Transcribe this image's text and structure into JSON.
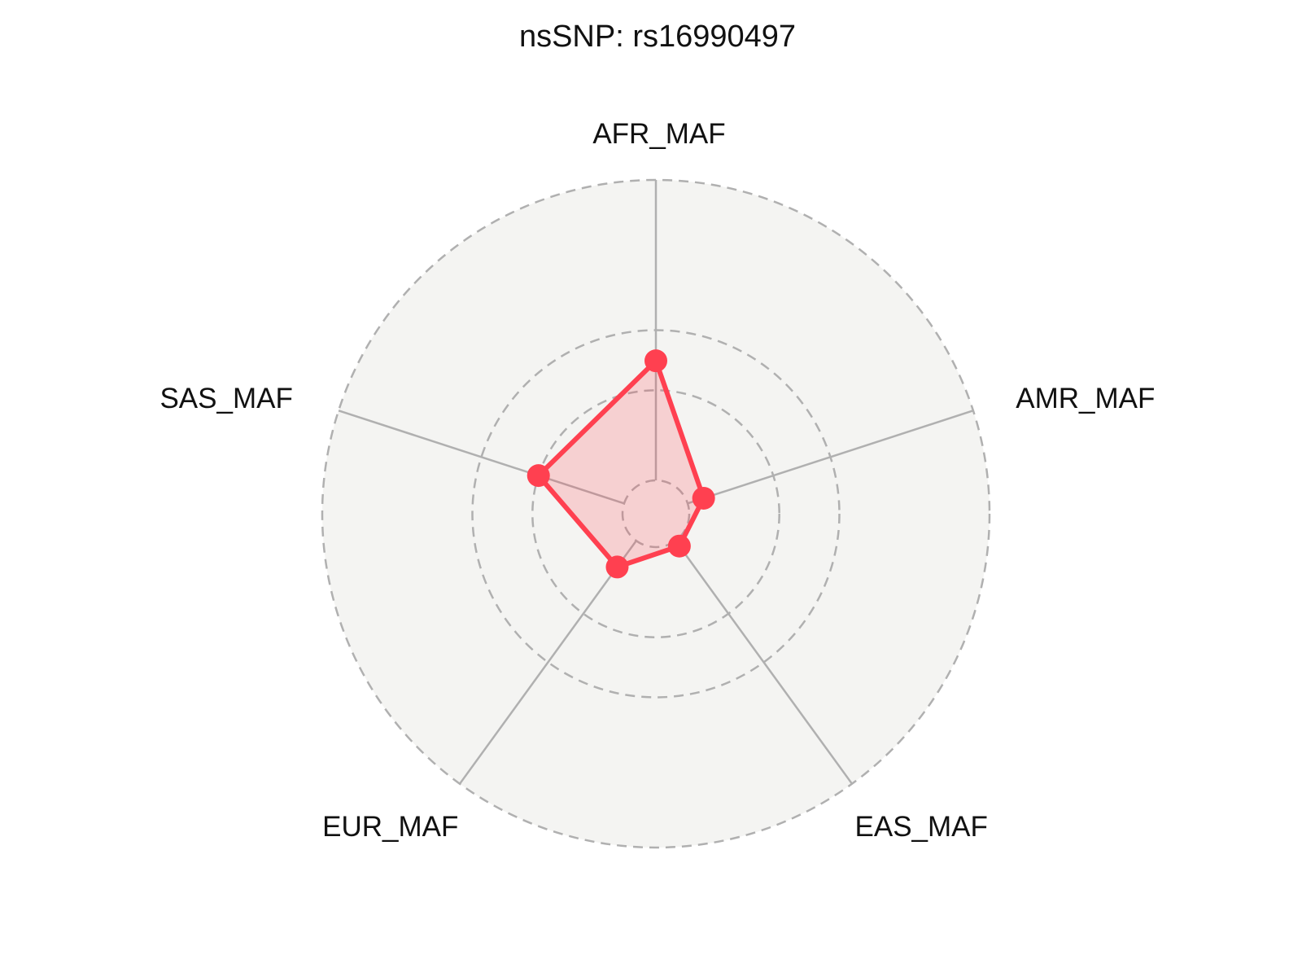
{
  "chart_data": {
    "type": "radar",
    "title": "nsSNP: rs16990497",
    "categories": [
      "AFR_MAF",
      "AMR_MAF",
      "EAS_MAF",
      "EUR_MAF",
      "SAS_MAF"
    ],
    "series": [
      {
        "values": [
          0.199,
          0.028,
          0.011,
          0.054,
          0.15
        ]
      }
    ],
    "rlim": [
      0,
      0.5
    ],
    "grid_rings": [
      0,
      0.15,
      0.25,
      0.5
    ],
    "grid": true,
    "colors": {
      "series": "#ff4050",
      "fill": "#f5d2d3",
      "background": "#f4f4f2",
      "grid": "#b0b0b0"
    }
  }
}
